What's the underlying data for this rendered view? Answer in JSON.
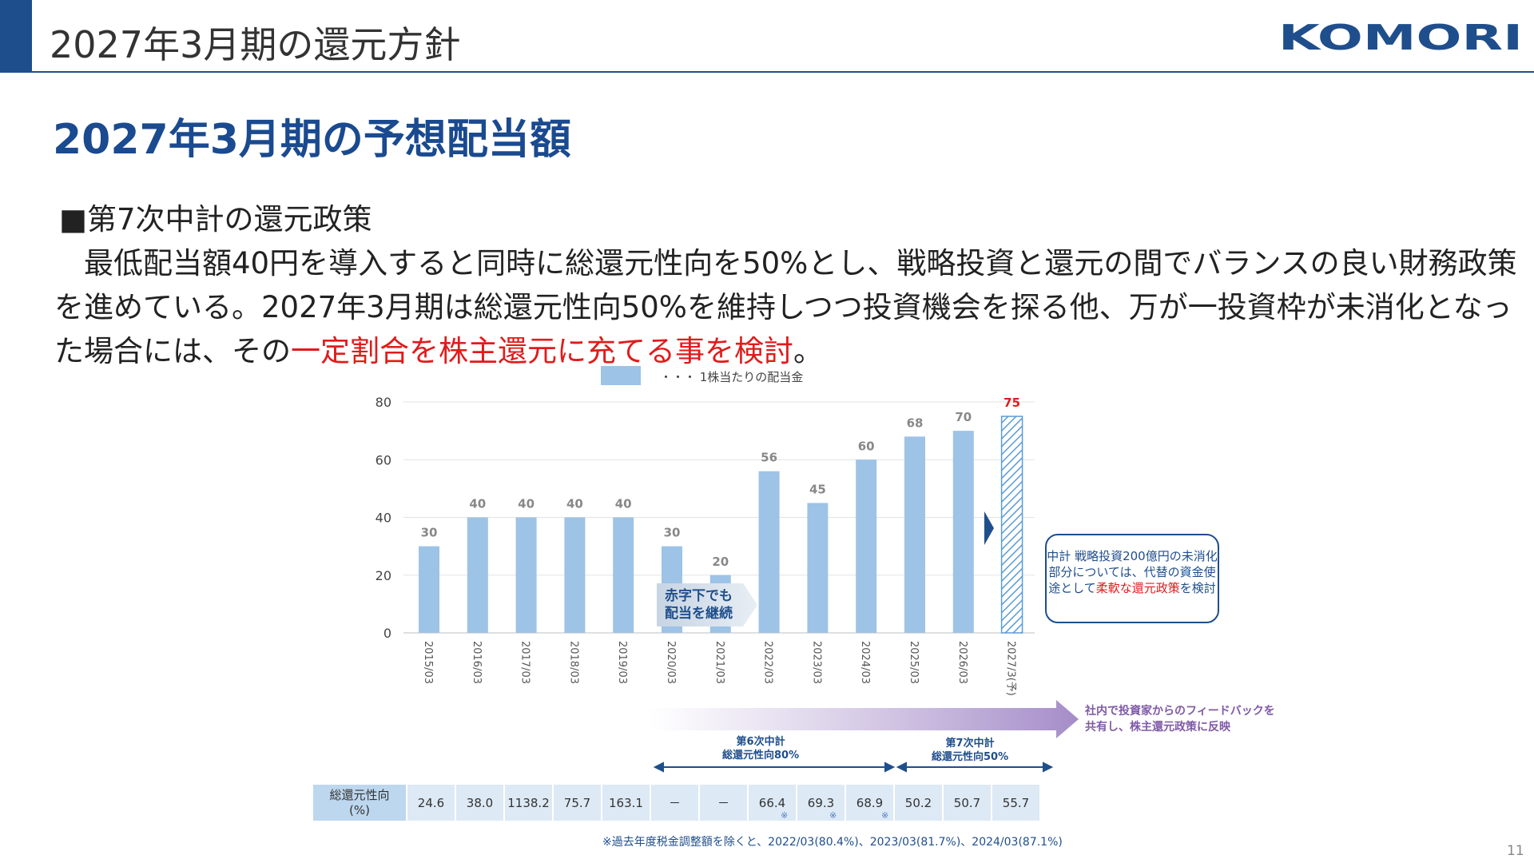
{
  "header": {
    "title": "2027年3月期の還元方針",
    "logo_text": "KOMORI"
  },
  "main": {
    "heading": "2027年3月期の予想配当額",
    "section_label": "■第7次中計の還元政策",
    "body_lines": [
      "　最低配当額40円を導入すると同時に総還元性向を50%とし、戦略投資と還元の間でバランスの良い財務政策",
      "を進めている。2027年3月期は総還元性向50%を維持しつつ投資機会を探る他、万が一投資枠が未消化となっ",
      "た場合には、その"
    ],
    "body_highlight": "一定割合を株主還元に充てる事を検討",
    "body_end": "。"
  },
  "chart_data": {
    "type": "bar",
    "legend": "・・・ 1株当たりの配当金",
    "categories": [
      "2015/03",
      "2016/03",
      "2017/03",
      "2018/03",
      "2019/03",
      "2020/03",
      "2021/03",
      "2022/03",
      "2023/03",
      "2024/03",
      "2025/03",
      "2026/03",
      "2027/3(予)"
    ],
    "series": [
      {
        "name": "1株当たりの配当金",
        "values": [
          30,
          40,
          40,
          40,
          40,
          30,
          20,
          56,
          45,
          60,
          68,
          70,
          75
        ]
      }
    ],
    "ylim": [
      0,
      80
    ],
    "yticks": [
      0,
      20,
      40,
      60,
      80
    ],
    "forecast_index": 12,
    "colors": {
      "bar": "#9dc3e6",
      "forecast": "#5b9bd5",
      "forecast_label": "#e11b1b",
      "value_label": "#888888"
    }
  },
  "annotations": {
    "deficit": [
      "赤字下でも",
      "配当を継続"
    ],
    "callout_pre": "中計 戦略投資200億円の未消化部分については、代替の資金使途として",
    "callout_red": "柔軟な還元政策",
    "callout_post": "を検討",
    "feedback": [
      "社内で投資家からのフィードバックを",
      "共有し、株主還元政策に反映"
    ],
    "plan6": [
      "第6次中計",
      "総還元性向80%"
    ],
    "plan7": [
      "第7次中計",
      "総還元性向50%"
    ]
  },
  "payout_table": {
    "header": [
      "総還元性向",
      "(%)"
    ],
    "values": [
      "24.6",
      "38.0",
      "1138.2",
      "75.7",
      "163.1",
      "－",
      "－",
      "66.4",
      "69.3",
      "68.9",
      "50.2",
      "50.7",
      "55.7"
    ],
    "marked": [
      7,
      8,
      9
    ],
    "mark_symbol": "※"
  },
  "footnote": "※過去年度税金調整額を除くと、2022/03(80.4%)、2023/03(81.7%)、2024/03(87.1%)",
  "page_number": "11"
}
